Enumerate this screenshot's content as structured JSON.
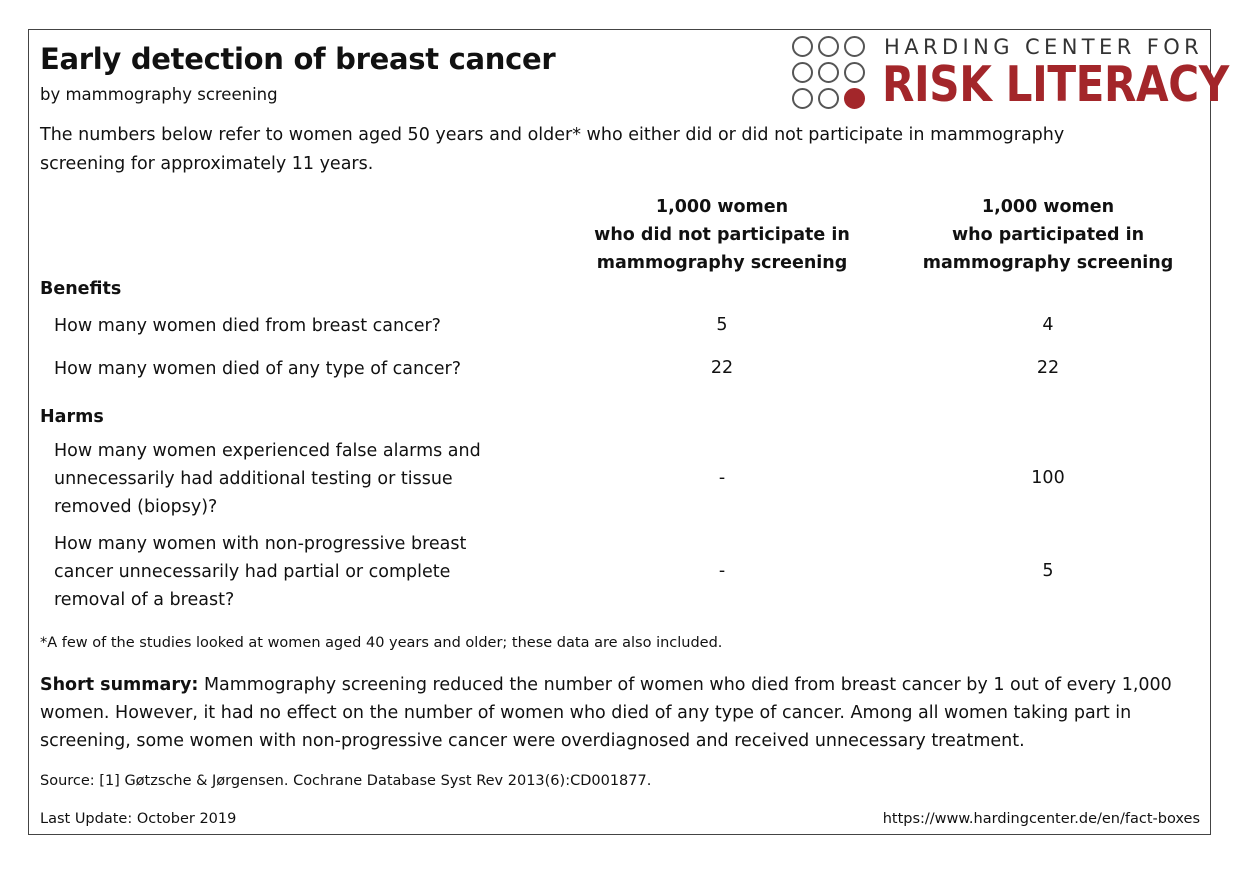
{
  "header": {
    "title": "Early detection of breast cancer",
    "subtitle": "by mammography screening",
    "intro": "The numbers below refer to women aged 50 years and older* who either did or did not participate in mammography screening for approximately 11 years."
  },
  "logo": {
    "line1": "HARDING CENTER FOR",
    "line2": "RISK LITERACY",
    "accent_color": "#a3262a",
    "icon": "dot-grid-logo-icon"
  },
  "columns": [
    {
      "line1": "1,000 women",
      "line2": "who did not participate in",
      "line3": "mammography screening"
    },
    {
      "line1": "1,000 women",
      "line2": "who participated in",
      "line3": "mammography screening"
    }
  ],
  "benefits": {
    "heading": "Benefits",
    "rows": [
      {
        "question": "How many women died from breast cancer?",
        "no_screening": "5",
        "screening": "4"
      },
      {
        "question": "How many women died of any type of cancer?",
        "no_screening": "22",
        "screening": "22"
      }
    ]
  },
  "harms": {
    "heading": "Harms",
    "rows": [
      {
        "question": "How many women experienced false alarms and unnecessarily had additional testing or tissue removed (biopsy)?",
        "no_screening": "-",
        "screening": "100"
      },
      {
        "question": "How many women with non-progressive breast cancer unnecessarily had partial or complete removal of a breast?",
        "no_screening": "-",
        "screening": "5"
      }
    ]
  },
  "footnote": "*A few of the studies looked at women aged 40 years and older; these data are also included.",
  "summary": {
    "label": "Short summary:",
    "text": " Mammography screening reduced the number of women who died from breast cancer by 1 out of every 1,000 women. However, it had no effect on the number of women who died of any type of cancer. Among all women taking part in screening, some women with non-progressive cancer were overdiagnosed and received unnecessary treatment."
  },
  "source": "Source: [1] Gøtzsche & Jørgensen. Cochrane Database Syst Rev 2013(6):CD001877.",
  "footer": {
    "last_update": "Last Update: October 2019",
    "url": "https://www.hardingcenter.de/en/fact-boxes"
  }
}
